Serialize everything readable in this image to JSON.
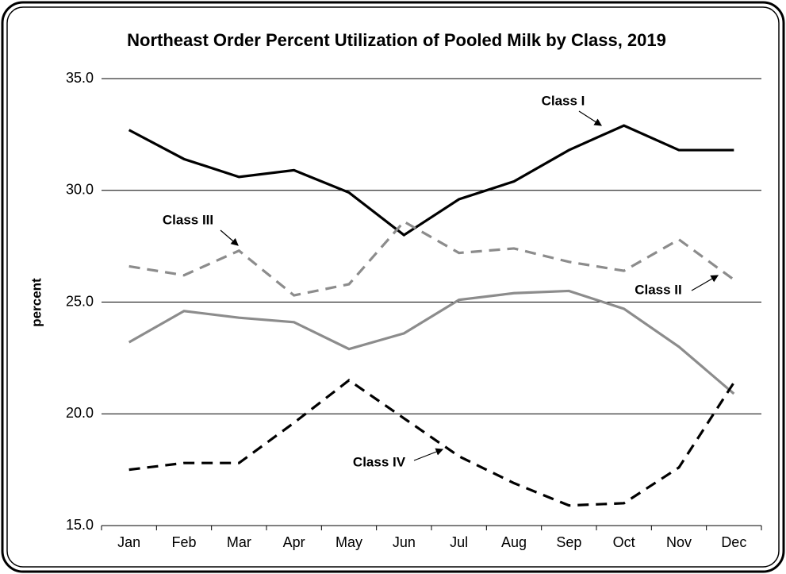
{
  "chart_data": {
    "type": "line",
    "title": "Northeast Order Percent Utilization of Pooled Milk by Class, 2019",
    "y_label": "percent",
    "categories": [
      "Jan",
      "Feb",
      "Mar",
      "Apr",
      "May",
      "Jun",
      "Jul",
      "Aug",
      "Sep",
      "Oct",
      "Nov",
      "Dec"
    ],
    "series": [
      {
        "name": "Class I",
        "color": "#000000",
        "dash": false,
        "values": [
          32.7,
          31.4,
          30.6,
          30.9,
          29.9,
          28.0,
          29.6,
          30.4,
          31.8,
          32.9,
          31.8,
          31.8
        ]
      },
      {
        "name": "Class II",
        "color": "#8c8c8c",
        "dash": true,
        "values": [
          26.6,
          26.2,
          27.3,
          25.3,
          25.8,
          28.6,
          27.2,
          27.4,
          26.8,
          26.4,
          27.8,
          26.0
        ]
      },
      {
        "name": "Class III",
        "color": "#8c8c8c",
        "dash": false,
        "values": [
          23.2,
          24.6,
          24.3,
          24.1,
          22.9,
          23.6,
          25.1,
          25.4,
          25.5,
          24.7,
          23.0,
          20.9
        ]
      },
      {
        "name": "Class IV",
        "color": "#000000",
        "dash": true,
        "values": [
          17.5,
          17.8,
          17.8,
          19.6,
          21.5,
          19.8,
          18.1,
          16.9,
          15.9,
          16.0,
          17.6,
          21.4
        ]
      }
    ],
    "ylim": [
      15,
      35
    ],
    "yticks": [
      {
        "value": 15,
        "label": "15.0"
      },
      {
        "value": 20,
        "label": "20.0"
      },
      {
        "value": 25,
        "label": "25.0"
      },
      {
        "value": 30,
        "label": "30.0"
      },
      {
        "value": 35,
        "label": "35.0"
      }
    ],
    "grid": true
  }
}
